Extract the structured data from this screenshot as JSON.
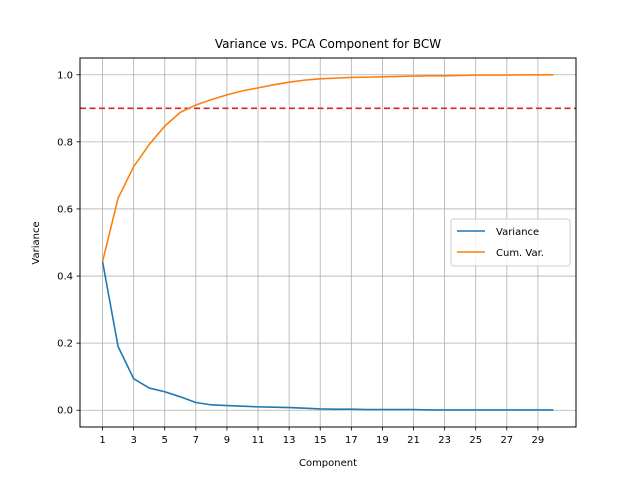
{
  "chart_data": {
    "type": "line",
    "title": "Variance vs. PCA Component for BCW",
    "xlabel": "Component",
    "ylabel": "Variance",
    "xlim": [
      -0.45,
      31.45
    ],
    "ylim": [
      -0.05,
      1.05
    ],
    "xticks": [
      1,
      3,
      5,
      7,
      9,
      11,
      13,
      15,
      17,
      19,
      21,
      23,
      25,
      27,
      29
    ],
    "yticks": [
      0.0,
      0.2,
      0.4,
      0.6,
      0.8,
      1.0
    ],
    "ytick_labels": [
      "0.0",
      "0.2",
      "0.4",
      "0.6",
      "0.8",
      "1.0"
    ],
    "grid": true,
    "legend_position": "center-right",
    "threshold": {
      "y": 0.9,
      "color": "#d62728",
      "style": "dashed"
    },
    "x": [
      1,
      2,
      3,
      4,
      5,
      6,
      7,
      8,
      9,
      10,
      11,
      12,
      13,
      14,
      15,
      16,
      17,
      18,
      19,
      20,
      21,
      22,
      23,
      24,
      25,
      26,
      27,
      28,
      29,
      30
    ],
    "series": [
      {
        "name": "Variance",
        "color": "#1f77b4",
        "values": [
          0.443,
          0.19,
          0.094,
          0.066,
          0.055,
          0.04,
          0.023,
          0.016,
          0.014,
          0.012,
          0.01,
          0.009,
          0.008,
          0.006,
          0.004,
          0.003,
          0.003,
          0.002,
          0.002,
          0.002,
          0.002,
          0.001,
          0.001,
          0.001,
          0.001,
          0.001,
          0.001,
          0.001,
          0.001,
          0.001
        ]
      },
      {
        "name": "Cum. Var.",
        "color": "#ff7f0e",
        "values": [
          0.443,
          0.632,
          0.726,
          0.792,
          0.847,
          0.888,
          0.91,
          0.926,
          0.94,
          0.952,
          0.961,
          0.97,
          0.978,
          0.984,
          0.988,
          0.99,
          0.992,
          0.993,
          0.994,
          0.995,
          0.996,
          0.997,
          0.997,
          0.998,
          0.999,
          0.999,
          0.999,
          1.0,
          1.0,
          1.0
        ]
      }
    ]
  }
}
